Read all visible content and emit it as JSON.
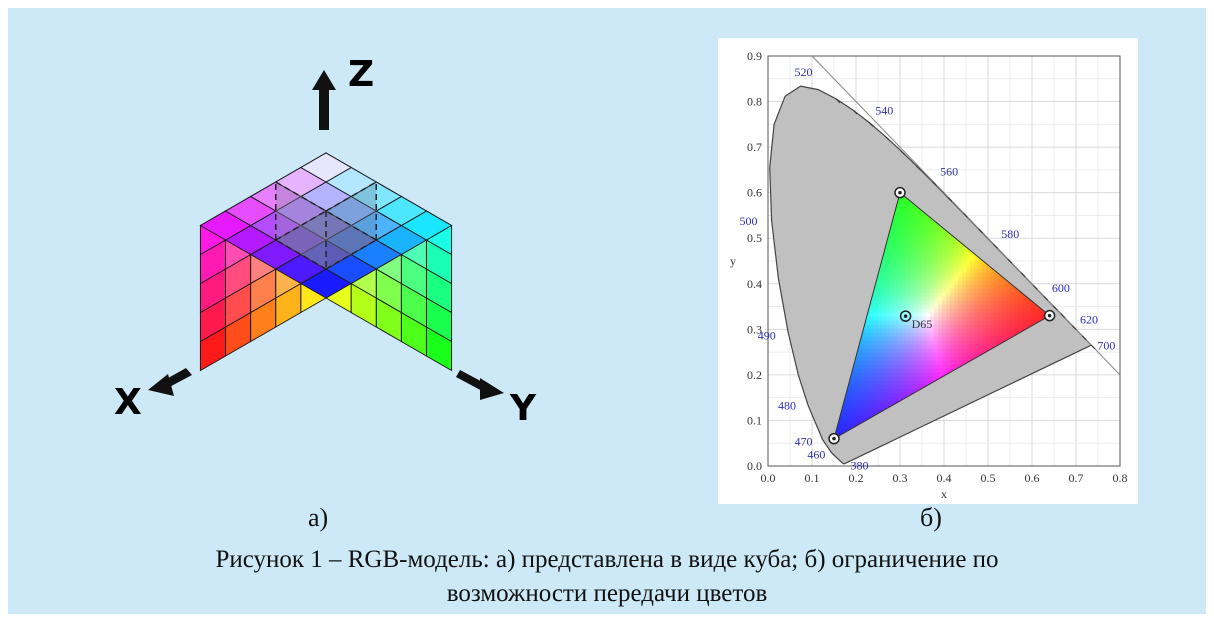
{
  "panel_a": {
    "label": "а)",
    "axes": {
      "x": "X",
      "y": "Y",
      "z": "Z"
    }
  },
  "panel_b": {
    "label": "б)",
    "x_axis_label": "x",
    "y_axis_label": "y",
    "x_ticks": [
      "0.0",
      "0.1",
      "0.2",
      "0.3",
      "0.4",
      "0.5",
      "0.6",
      "0.7",
      "0.8"
    ],
    "y_ticks": [
      "0.0",
      "0.1",
      "0.2",
      "0.3",
      "0.4",
      "0.5",
      "0.6",
      "0.7",
      "0.8",
      "0.9"
    ],
    "wavelength_labels": [
      {
        "text": "380",
        "x": 0.174,
        "y": 0.005
      },
      {
        "text": "460",
        "x": 0.144,
        "y": 0.03
      },
      {
        "text": "470",
        "x": 0.124,
        "y": 0.058
      },
      {
        "text": "480",
        "x": 0.091,
        "y": 0.133
      },
      {
        "text": "490",
        "x": 0.045,
        "y": 0.295
      },
      {
        "text": "500",
        "x": 0.008,
        "y": 0.538
      },
      {
        "text": "520",
        "x": 0.074,
        "y": 0.834
      },
      {
        "text": "540",
        "x": 0.23,
        "y": 0.754
      },
      {
        "text": "560",
        "x": 0.373,
        "y": 0.624
      },
      {
        "text": "580",
        "x": 0.512,
        "y": 0.487
      },
      {
        "text": "600",
        "x": 0.627,
        "y": 0.373
      },
      {
        "text": "620",
        "x": 0.691,
        "y": 0.308
      },
      {
        "text": "700",
        "x": 0.735,
        "y": 0.265
      }
    ],
    "white_point": {
      "label": "D65",
      "x": 0.3127,
      "y": 0.329
    },
    "gamut_primaries": {
      "red": [
        0.64,
        0.33
      ],
      "green": [
        0.3,
        0.6
      ],
      "blue": [
        0.15,
        0.06
      ]
    }
  },
  "caption": {
    "line1": "Рисунок 1 – RGB-модель: а) представлена в виде куба; б) ограничение по",
    "line2": "возможности передачи цветов"
  }
}
